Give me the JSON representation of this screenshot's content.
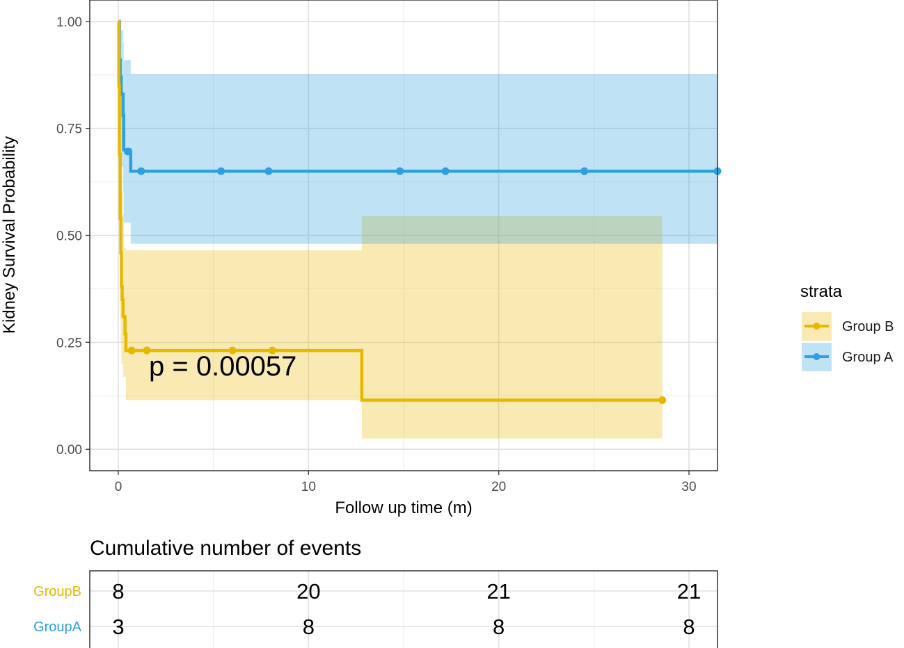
{
  "chart_data": [
    {
      "type": "line",
      "subtype": "kaplan-meier step survival curve with confidence bands",
      "xlabel": "Follow up time (m)",
      "ylabel": "Kidney Survival Probability",
      "xlim": [
        -1.5,
        31.5
      ],
      "ylim": [
        -0.05,
        1.05
      ],
      "x_ticks": [
        "0",
        "10",
        "20",
        "30"
      ],
      "x_tick_values": [
        0,
        10,
        20,
        30
      ],
      "y_ticks": [
        "0.00",
        "0.25",
        "0.50",
        "0.75",
        "1.00"
      ],
      "y_tick_values": [
        0,
        0.25,
        0.5,
        0.75,
        1
      ],
      "grid": true,
      "annotation": "p = 0.00057",
      "legend": {
        "title": "strata",
        "placement": "right",
        "entries": [
          "Group B",
          "Group A"
        ]
      },
      "series": [
        {
          "name": "Group B",
          "color": "#E7B800",
          "band_color": "#E7B800",
          "steps": [
            [
              0.0,
              1.0
            ],
            [
              0.03,
              0.85
            ],
            [
              0.06,
              0.69
            ],
            [
              0.1,
              0.54
            ],
            [
              0.13,
              0.46
            ],
            [
              0.16,
              0.38
            ],
            [
              0.2,
              0.35
            ],
            [
              0.25,
              0.31
            ],
            [
              0.35,
              0.27
            ],
            [
              0.4,
              0.231
            ],
            [
              12.8,
              0.115
            ],
            [
              28.6,
              0.115
            ]
          ],
          "censored": [
            [
              0.7,
              0.231
            ],
            [
              1.5,
              0.231
            ],
            [
              6.0,
              0.231
            ],
            [
              8.1,
              0.231
            ],
            [
              28.6,
              0.115
            ]
          ],
          "ci": [
            [
              0.0,
              1.0,
              1.0
            ],
            [
              0.03,
              0.7,
              0.95
            ],
            [
              0.1,
              0.3,
              0.8
            ],
            [
              0.13,
              0.25,
              0.68
            ],
            [
              0.16,
              0.2,
              0.6
            ],
            [
              0.25,
              0.17,
              0.55
            ],
            [
              0.3,
              0.17,
              0.47
            ],
            [
              0.4,
              0.115,
              0.465
            ],
            [
              12.8,
              0.025,
              0.545
            ],
            [
              28.6,
              0.025,
              0.545
            ]
          ]
        },
        {
          "name": "Group A",
          "color": "#2E9FDF",
          "band_color": "#2E9FDF",
          "steps": [
            [
              0.0,
              1.0
            ],
            [
              0.05,
              0.91
            ],
            [
              0.1,
              0.87
            ],
            [
              0.15,
              0.83
            ],
            [
              0.25,
              0.78
            ],
            [
              0.28,
              0.7
            ],
            [
              0.6,
              0.696
            ],
            [
              0.65,
              0.65
            ],
            [
              31.5,
              0.65
            ]
          ],
          "censored": [
            [
              0.5,
              0.696
            ],
            [
              1.2,
              0.65
            ],
            [
              5.4,
              0.65
            ],
            [
              7.9,
              0.65
            ],
            [
              14.8,
              0.65
            ],
            [
              17.2,
              0.65
            ],
            [
              24.5,
              0.65
            ],
            [
              31.5,
              0.65
            ]
          ],
          "ci": [
            [
              0.0,
              1.0,
              1.0
            ],
            [
              0.05,
              0.8,
              1.0
            ],
            [
              0.1,
              0.75,
              1.0
            ],
            [
              0.15,
              0.66,
              0.98
            ],
            [
              0.25,
              0.6,
              0.95
            ],
            [
              0.28,
              0.53,
              0.91
            ],
            [
              0.65,
              0.48,
              0.877
            ],
            [
              31.5,
              0.48,
              0.877
            ]
          ]
        }
      ]
    },
    {
      "type": "table",
      "title": "Cumulative number of events",
      "columns_at_x": [
        0,
        10,
        20,
        30
      ],
      "rows": [
        {
          "name": "GroupB",
          "color": "#E7B800",
          "values": [
            "8",
            "20",
            "21",
            "21"
          ]
        },
        {
          "name": "GroupA",
          "color": "#2E9FDF",
          "values": [
            "3",
            "8",
            "8",
            "8"
          ]
        }
      ]
    }
  ]
}
